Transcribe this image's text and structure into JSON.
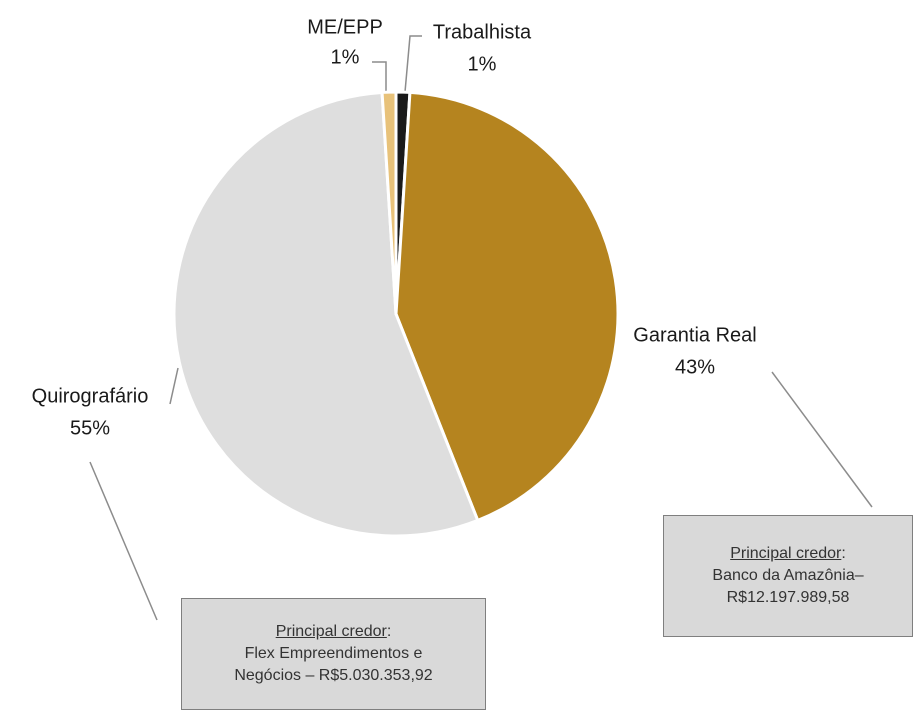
{
  "chart_data": {
    "type": "pie",
    "categories": [
      "Trabalhista",
      "Garantia Real",
      "Quirografário",
      "ME/EPP"
    ],
    "values": [
      1,
      43,
      55,
      1
    ],
    "value_labels": [
      "1%",
      "43%",
      "55%",
      "1%"
    ],
    "colors": [
      "#1a1a1a",
      "#b5841f",
      "#dedede",
      "#e8c27a"
    ],
    "annotations": [
      {
        "heading": "Principal credor",
        "suffix": ":",
        "lines": [
          "Banco da Amazônia–",
          "R$12.197.989,58"
        ]
      },
      {
        "heading": "Principal credor",
        "suffix": ":",
        "lines": [
          "Flex Empreendimentos  e",
          "Negócios – R$5.030.353,92"
        ]
      }
    ]
  }
}
